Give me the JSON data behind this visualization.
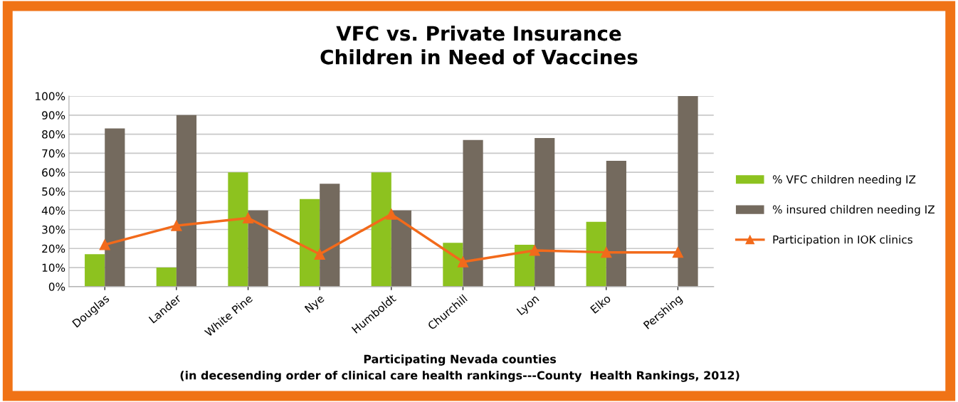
{
  "chart_data": {
    "type": "bar",
    "title": "VFC vs. Private Insurance\nChildren in Need of Vaccines",
    "xlabel": "Participating Nevada counties\n(in decesending order of clinical care health rankings---County  Health Rankings, 2012)",
    "categories": [
      "Douglas",
      "Lander",
      "White Pine",
      "Nye",
      "Humboldt",
      "Churchill",
      "Lyon",
      "Elko",
      "Pershing"
    ],
    "series": [
      {
        "name": "% VFC children needing IZ",
        "color": "#8dc21f",
        "values": [
          17,
          10,
          60,
          46,
          60,
          23,
          22,
          34,
          0
        ]
      },
      {
        "name": "% insured children needing IZ",
        "color": "#746a5e",
        "values": [
          83,
          90,
          40,
          54,
          40,
          77,
          78,
          66,
          100
        ]
      },
      {
        "name": "Participation in IOK clinics",
        "type": "line",
        "color": "#f26a1b",
        "marker": "triangle",
        "values": [
          22,
          32,
          36,
          17,
          38,
          13,
          19,
          18,
          18
        ]
      }
    ],
    "ylim": [
      0,
      100
    ],
    "yticks": [
      {
        "value": 0,
        "label": "0%"
      },
      {
        "value": 10,
        "label": "10%"
      },
      {
        "value": 20,
        "label": "20%"
      },
      {
        "value": 30,
        "label": "30%"
      },
      {
        "value": 40,
        "label": "40%"
      },
      {
        "value": 50,
        "label": "50%"
      },
      {
        "value": 60,
        "label": "60%"
      },
      {
        "value": 70,
        "label": "70%"
      },
      {
        "value": 80,
        "label": "80%"
      },
      {
        "value": 90,
        "label": "90%"
      },
      {
        "value": 100,
        "label": "100%"
      }
    ],
    "grid": "y",
    "legend": "right"
  }
}
